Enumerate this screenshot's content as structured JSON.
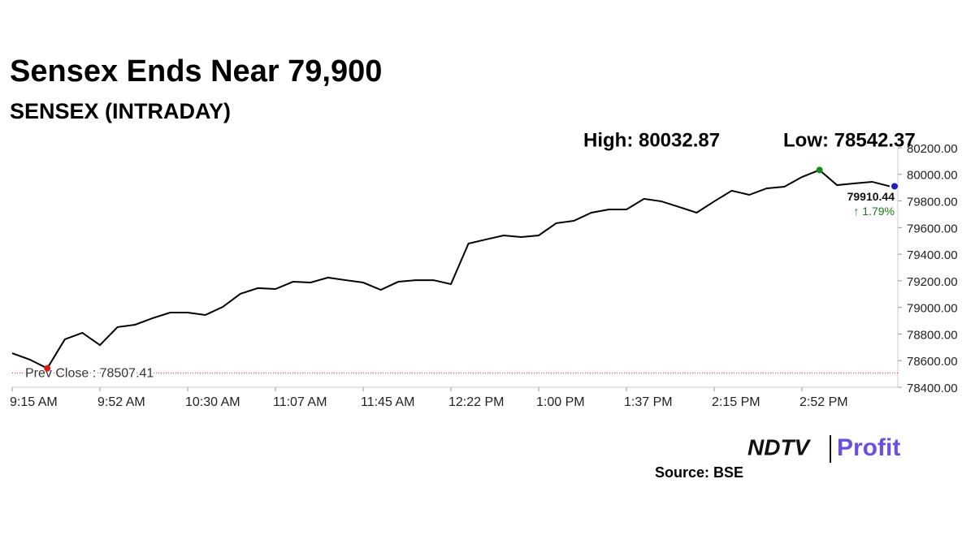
{
  "chart_data": {
    "type": "line",
    "title": "Sensex Ends Near 79,900",
    "subtitle": "SENSEX (INTRADAY)",
    "high": {
      "value": 80032.87,
      "label": "High: 80032.87"
    },
    "low": {
      "value": 78542.37,
      "label": "Low: 78542.37"
    },
    "prev_close": {
      "value": 78507.41,
      "label": "Prev Close : 78507.41"
    },
    "last_label": "79910.44",
    "change_label": "↑ 1.79%",
    "categories": [
      "9:15 AM",
      null,
      null,
      null,
      null,
      "9:52 AM",
      null,
      null,
      null,
      null,
      "10:30 AM",
      null,
      null,
      null,
      null,
      "11:07 AM",
      null,
      null,
      null,
      null,
      "11:45 AM",
      null,
      null,
      null,
      null,
      "12:22 PM",
      null,
      null,
      null,
      null,
      "1:00 PM",
      null,
      null,
      null,
      null,
      "1:37 PM",
      null,
      null,
      null,
      null,
      "2:15 PM",
      null,
      null,
      null,
      null,
      "2:52 PM",
      null,
      null,
      null,
      null,
      null
    ],
    "series": [
      {
        "name": "SENSEX",
        "color": "#000000",
        "values": [
          78656,
          78608,
          78542.37,
          78760,
          78809,
          78717,
          78852,
          78870,
          78919,
          78961,
          78961,
          78943,
          79004,
          79102,
          79145,
          79138,
          79193,
          79187,
          79224,
          79205,
          79187,
          79132,
          79193,
          79205,
          79205,
          79175,
          79480,
          79511,
          79541,
          79529,
          79541,
          79633,
          79651,
          79712,
          79736,
          79736,
          79816,
          79797,
          79755,
          79712,
          79797,
          79877,
          79846,
          79895,
          79907,
          79980,
          80032.87,
          79919,
          79932,
          79944,
          79910.44
        ]
      }
    ],
    "ylim": [
      78400,
      80200
    ],
    "yticks": [
      {
        "value": 78400,
        "label": "78400.00"
      },
      {
        "value": 78600,
        "label": "78600.00"
      },
      {
        "value": 78800,
        "label": "78800.00"
      },
      {
        "value": 79000,
        "label": "79000.00"
      },
      {
        "value": 79200,
        "label": "79200.00"
      },
      {
        "value": 79400,
        "label": "79400.00"
      },
      {
        "value": 79600,
        "label": "79600.00"
      },
      {
        "value": 79800,
        "label": "79800.00"
      },
      {
        "value": 80000,
        "label": "80000.00"
      },
      {
        "value": 80200,
        "label": "80200.00"
      }
    ],
    "source": "Source: BSE",
    "logo": {
      "left": "NDTV",
      "right": "Profit"
    },
    "marker_colors": {
      "high": "#1a8a1a",
      "low": "#e01818",
      "last": "#2020c0",
      "change": "#1a7a1a",
      "prev_close": "#d03030"
    }
  }
}
